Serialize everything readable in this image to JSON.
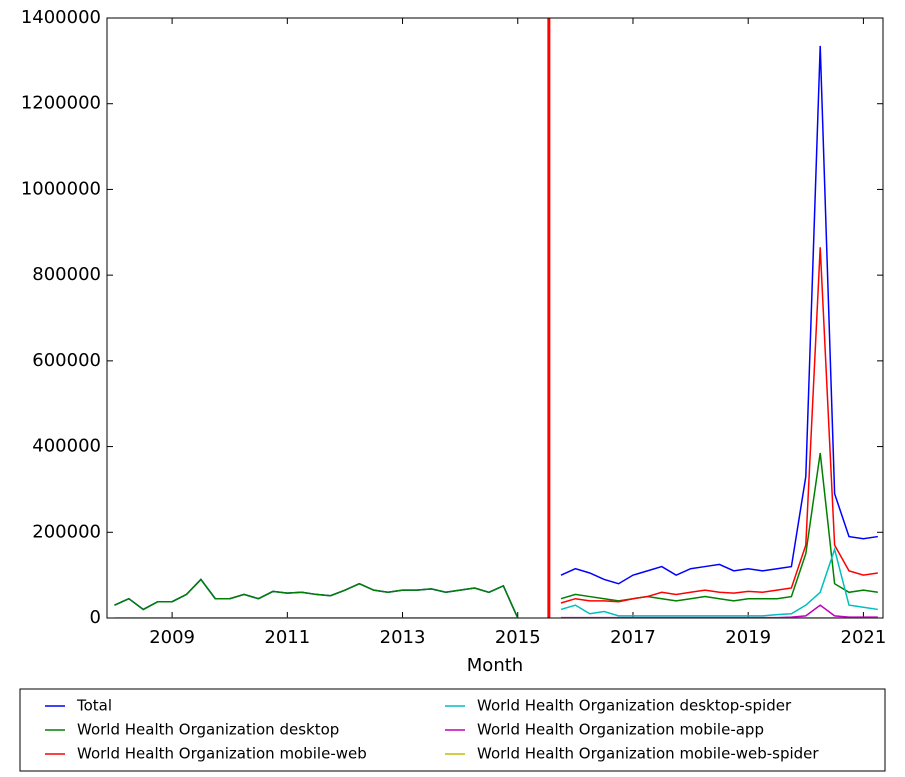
{
  "chart_data": {
    "type": "line",
    "xlabel": "Month",
    "x": [
      2008.0,
      2008.25,
      2008.5,
      2008.75,
      2009.0,
      2009.25,
      2009.5,
      2009.75,
      2010.0,
      2010.25,
      2010.5,
      2010.75,
      2011.0,
      2011.25,
      2011.5,
      2011.75,
      2012.0,
      2012.25,
      2012.5,
      2012.75,
      2013.0,
      2013.25,
      2013.5,
      2013.75,
      2014.0,
      2014.25,
      2014.5,
      2014.75,
      2015.0,
      2015.25,
      2015.5,
      2015.75,
      2016.0,
      2016.25,
      2016.5,
      2016.75,
      2017.0,
      2017.25,
      2017.5,
      2017.75,
      2018.0,
      2018.25,
      2018.5,
      2018.75,
      2019.0,
      2019.25,
      2019.5,
      2019.75,
      2020.0,
      2020.25,
      2020.5,
      2020.75,
      2021.0,
      2021.25
    ],
    "series": [
      {
        "name": "Total",
        "color": "#0000ff",
        "values": [
          30000,
          45000,
          20000,
          38000,
          38000,
          55000,
          90000,
          45000,
          45000,
          55000,
          45000,
          62000,
          58000,
          60000,
          55000,
          52000,
          65000,
          80000,
          65000,
          60000,
          65000,
          65000,
          68000,
          60000,
          65000,
          70000,
          60000,
          75000,
          0,
          null,
          null,
          100000,
          115000,
          105000,
          90000,
          80000,
          100000,
          110000,
          120000,
          100000,
          115000,
          120000,
          125000,
          110000,
          115000,
          110000,
          115000,
          120000,
          330000,
          1335000,
          290000,
          190000,
          185000,
          190000
        ]
      },
      {
        "name": "World Health Organization desktop",
        "color": "#008000",
        "values": [
          30000,
          45000,
          20000,
          38000,
          38000,
          55000,
          90000,
          45000,
          45000,
          55000,
          45000,
          62000,
          58000,
          60000,
          55000,
          52000,
          65000,
          80000,
          65000,
          60000,
          65000,
          65000,
          68000,
          60000,
          65000,
          70000,
          60000,
          75000,
          0,
          null,
          null,
          45000,
          55000,
          50000,
          45000,
          40000,
          45000,
          50000,
          45000,
          40000,
          45000,
          50000,
          45000,
          40000,
          45000,
          45000,
          45000,
          50000,
          150000,
          385000,
          80000,
          60000,
          65000,
          60000
        ]
      },
      {
        "name": "World Health Organization mobile-web",
        "color": "#ff0000",
        "values": [
          null,
          null,
          null,
          null,
          null,
          null,
          null,
          null,
          null,
          null,
          null,
          null,
          null,
          null,
          null,
          null,
          null,
          null,
          null,
          null,
          null,
          null,
          null,
          null,
          null,
          null,
          null,
          null,
          null,
          null,
          null,
          35000,
          45000,
          40000,
          40000,
          38000,
          45000,
          50000,
          60000,
          55000,
          60000,
          65000,
          60000,
          58000,
          62000,
          60000,
          65000,
          70000,
          170000,
          865000,
          170000,
          110000,
          100000,
          105000
        ]
      },
      {
        "name": "World Health Organization desktop-spider",
        "color": "#00bfbf",
        "values": [
          null,
          null,
          null,
          null,
          null,
          null,
          null,
          null,
          null,
          null,
          null,
          null,
          null,
          null,
          null,
          null,
          null,
          null,
          null,
          null,
          null,
          null,
          null,
          null,
          null,
          null,
          null,
          null,
          null,
          null,
          null,
          20000,
          30000,
          10000,
          15000,
          5000,
          5000,
          5000,
          5000,
          5000,
          5000,
          5000,
          5000,
          5000,
          5000,
          5000,
          8000,
          10000,
          30000,
          60000,
          160000,
          30000,
          25000,
          20000
        ]
      },
      {
        "name": "World Health Organization mobile-app",
        "color": "#bf00bf",
        "values": [
          null,
          null,
          null,
          null,
          null,
          null,
          null,
          null,
          null,
          null,
          null,
          null,
          null,
          null,
          null,
          null,
          null,
          null,
          null,
          null,
          null,
          null,
          null,
          null,
          null,
          null,
          null,
          null,
          null,
          null,
          null,
          1000,
          1000,
          1000,
          1000,
          1000,
          1000,
          1000,
          1000,
          1000,
          1000,
          1000,
          1000,
          1000,
          1000,
          1000,
          1000,
          2000,
          5000,
          30000,
          5000,
          2000,
          2000,
          2000
        ]
      },
      {
        "name": "World Health Organization mobile-web-spider",
        "color": "#bfbf00",
        "values": [
          0,
          0,
          0,
          0,
          0,
          0,
          0,
          0,
          0,
          0,
          0,
          0,
          0,
          0,
          0,
          0,
          0,
          0,
          0,
          0,
          0,
          0,
          0,
          0,
          0,
          0,
          0,
          0,
          0,
          null,
          null,
          0,
          0,
          0,
          0,
          0,
          0,
          0,
          0,
          0,
          0,
          0,
          0,
          0,
          0,
          0,
          0,
          0,
          0,
          0,
          0,
          0,
          0,
          0
        ]
      }
    ],
    "xlim": [
      2007.87,
      2021.34
    ],
    "xticks": [
      2009,
      2011,
      2013,
      2015,
      2017,
      2019,
      2021
    ],
    "ylim": [
      0,
      1400000
    ],
    "yticks": [
      0,
      200000,
      400000,
      600000,
      800000,
      1000000,
      1200000,
      1400000
    ],
    "vline": {
      "x": 2015.54,
      "color": "#ff0000"
    },
    "legend": "below"
  }
}
